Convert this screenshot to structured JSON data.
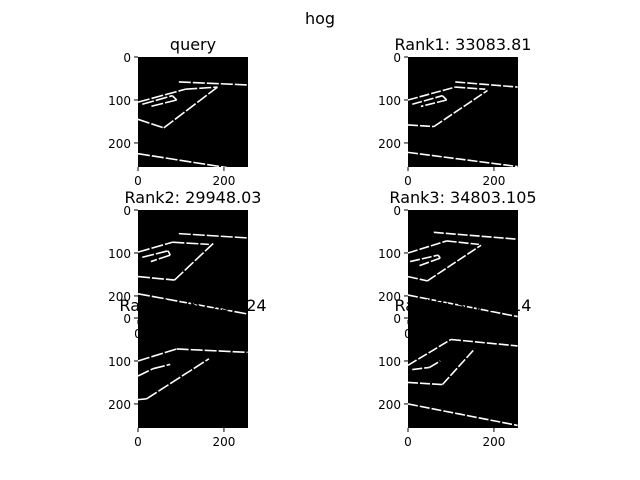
{
  "chart_data": {
    "type": "image-grid",
    "suptitle": "hog",
    "panels": [
      {
        "title": "query",
        "xticks": [
          "0",
          "200"
        ],
        "yticks": [
          "0",
          "100",
          "200"
        ],
        "lines": [
          [
            [
              0,
              145
            ],
            [
              60,
              165
            ]
          ],
          [
            [
              60,
              165
            ],
            [
              185,
              70
            ]
          ],
          [
            [
              0,
              105
            ],
            [
              110,
              75
            ]
          ],
          [
            [
              110,
              75
            ],
            [
              185,
              70
            ]
          ],
          [
            [
              95,
              58
            ],
            [
              255,
              65
            ]
          ],
          [
            [
              10,
              110
            ],
            [
              80,
              90
            ]
          ],
          [
            [
              80,
              90
            ],
            [
              90,
              100
            ]
          ],
          [
            [
              90,
              100
            ],
            [
              30,
              115
            ]
          ],
          [
            [
              0,
              225
            ],
            [
              255,
              265
            ]
          ]
        ]
      },
      {
        "title": "Rank1: 33083.81",
        "xticks": [
          "0",
          "200"
        ],
        "yticks": [
          "0",
          "100",
          "200"
        ],
        "lines": [
          [
            [
              0,
              158
            ],
            [
              60,
              162
            ]
          ],
          [
            [
              60,
              162
            ],
            [
              185,
              78
            ]
          ],
          [
            [
              0,
              100
            ],
            [
              110,
              70
            ]
          ],
          [
            [
              110,
              70
            ],
            [
              180,
              75
            ]
          ],
          [
            [
              110,
              58
            ],
            [
              255,
              70
            ]
          ],
          [
            [
              10,
              110
            ],
            [
              80,
              90
            ]
          ],
          [
            [
              80,
              90
            ],
            [
              90,
              100
            ]
          ],
          [
            [
              90,
              100
            ],
            [
              30,
              115
            ]
          ],
          [
            [
              0,
              222
            ],
            [
              255,
              255
            ]
          ]
        ]
      },
      {
        "title": "Rank2: 29948.03",
        "xticks": [
          "0",
          "200"
        ],
        "yticks": [
          "0",
          "100",
          "200"
        ],
        "lines": [
          [
            [
              0,
              155
            ],
            [
              85,
              163
            ]
          ],
          [
            [
              85,
              163
            ],
            [
              175,
              78
            ]
          ],
          [
            [
              0,
              98
            ],
            [
              80,
              75
            ]
          ],
          [
            [
              80,
              75
            ],
            [
              165,
              80
            ]
          ],
          [
            [
              95,
              55
            ],
            [
              255,
              65
            ]
          ],
          [
            [
              10,
              110
            ],
            [
              70,
              95
            ]
          ],
          [
            [
              70,
              95
            ],
            [
              75,
              105
            ]
          ],
          [
            [
              75,
              105
            ],
            [
              30,
              120
            ]
          ],
          [
            [
              0,
              195
            ],
            [
              255,
              242
            ]
          ]
        ]
      },
      {
        "title": "Rank3: 34803.105",
        "xticks": [
          "0",
          "200"
        ],
        "yticks": [
          "0",
          "100",
          "200"
        ],
        "lines": [
          [
            [
              0,
              155
            ],
            [
              45,
              165
            ]
          ],
          [
            [
              45,
              165
            ],
            [
              170,
              82
            ]
          ],
          [
            [
              0,
              100
            ],
            [
              90,
              72
            ]
          ],
          [
            [
              90,
              72
            ],
            [
              165,
              80
            ]
          ],
          [
            [
              60,
              52
            ],
            [
              255,
              68
            ]
          ],
          [
            [
              5,
              120
            ],
            [
              70,
              105
            ]
          ],
          [
            [
              70,
              105
            ],
            [
              75,
              112
            ]
          ],
          [
            [
              75,
              112
            ],
            [
              25,
              130
            ]
          ],
          [
            [
              0,
              198
            ],
            [
              255,
              248
            ]
          ]
        ]
      },
      {
        "title": "Rank4: 36225.324",
        "xticks": [
          "0",
          "200"
        ],
        "yticks": [
          "0",
          "100",
          "200"
        ],
        "lines": [
          [
            [
              0,
              190
            ],
            [
              20,
              188
            ]
          ],
          [
            [
              20,
              188
            ],
            [
              165,
              95
            ]
          ],
          [
            [
              0,
              100
            ],
            [
              90,
              72
            ]
          ],
          [
            [
              90,
              72
            ],
            [
              255,
              80
            ]
          ],
          [
            [
              0,
              135
            ],
            [
              35,
              118
            ]
          ],
          [
            [
              35,
              118
            ],
            [
              75,
              108
            ]
          ]
        ]
      },
      {
        "title": "Rank5: 35702.14",
        "xticks": [
          "0",
          "200"
        ],
        "yticks": [
          "0",
          "100",
          "200"
        ],
        "lines": [
          [
            [
              0,
              150
            ],
            [
              80,
              155
            ]
          ],
          [
            [
              80,
              155
            ],
            [
              155,
              72
            ]
          ],
          [
            [
              0,
              110
            ],
            [
              100,
              50
            ]
          ],
          [
            [
              100,
              50
            ],
            [
              255,
              65
            ]
          ],
          [
            [
              10,
              120
            ],
            [
              50,
              115
            ]
          ],
          [
            [
              50,
              115
            ],
            [
              75,
              100
            ]
          ],
          [
            [
              0,
              200
            ],
            [
              255,
              250
            ]
          ]
        ]
      }
    ]
  }
}
